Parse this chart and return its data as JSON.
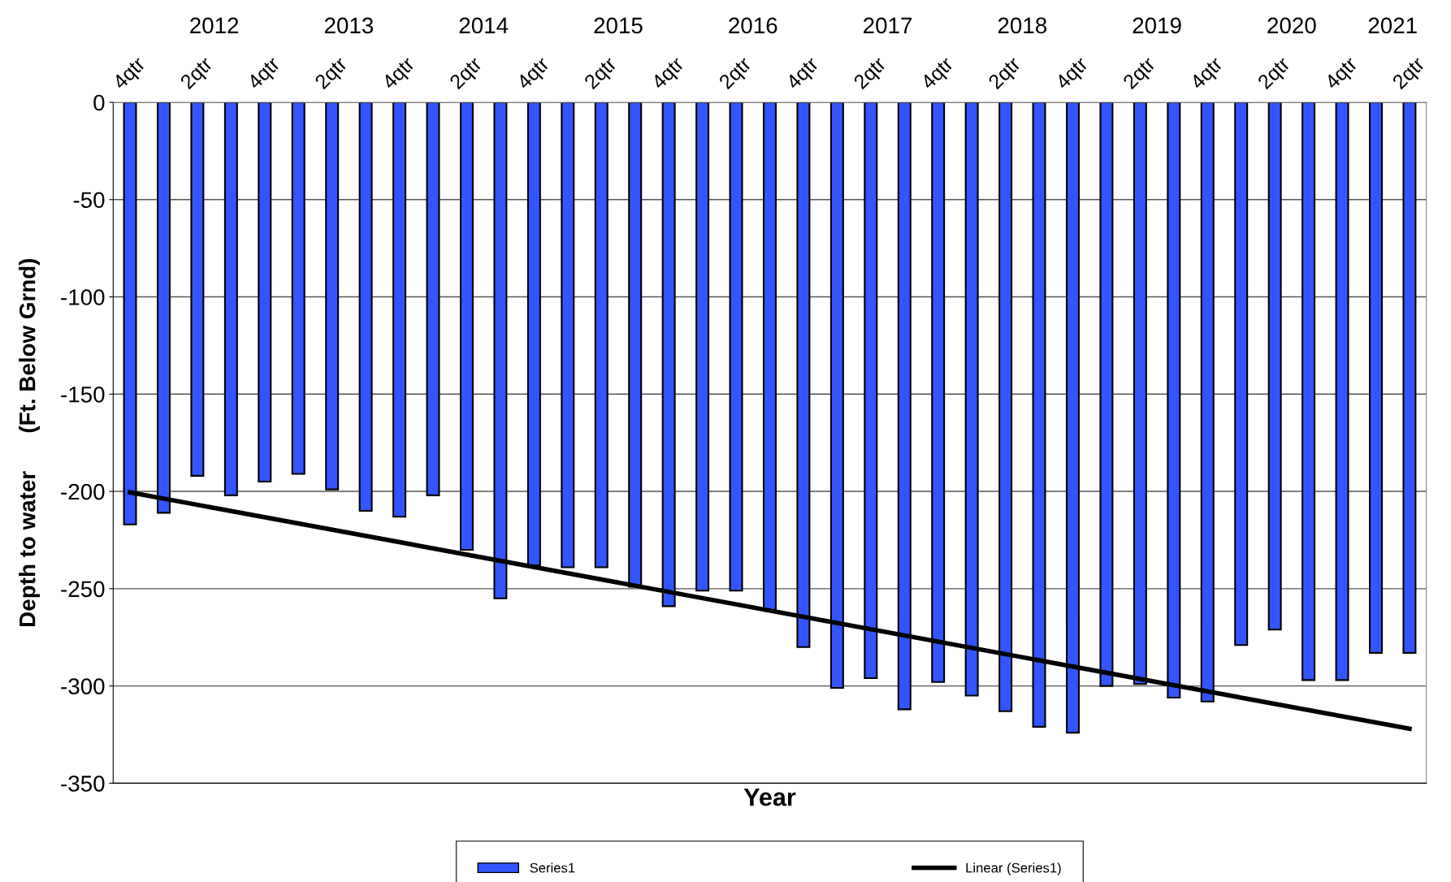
{
  "chart_data": {
    "type": "bar",
    "xlabel": "Year",
    "ylabel": "Depth to water      (Ft. Below Grnd)",
    "categories": [
      "4qtr",
      null,
      "2qtr",
      null,
      "4qtr",
      null,
      "2qtr",
      null,
      "4qtr",
      null,
      "2qtr",
      null,
      "4qtr",
      null,
      "2qtr",
      null,
      "4qtr",
      null,
      "2qtr",
      null,
      "4qtr",
      null,
      "2qtr",
      null,
      "4qtr",
      null,
      "2qtr",
      null,
      "4qtr",
      null,
      "2qtr",
      null,
      "4qtr",
      null,
      "2qtr",
      null,
      "4qtr",
      null,
      "2qtr"
    ],
    "series": [
      {
        "name": "Series1",
        "color": "#3355ff",
        "values": [
          -217,
          -211,
          -192,
          -202,
          -195,
          -191,
          -199,
          -210,
          -213,
          -202,
          -230,
          -255,
          -238,
          -239,
          -239,
          -249,
          -259,
          -251,
          -251,
          -261,
          -280,
          -301,
          -296,
          -312,
          -298,
          -305,
          -313,
          -321,
          -324,
          -300,
          -299,
          -306,
          -308,
          -279,
          -271,
          -297,
          -297,
          -283,
          -283
        ]
      },
      {
        "name": "Linear (Series1)",
        "type": "line",
        "color": "#000000",
        "values": [
          -200.5,
          null,
          null,
          null,
          null,
          null,
          null,
          null,
          null,
          null,
          null,
          null,
          null,
          null,
          null,
          null,
          null,
          null,
          null,
          null,
          null,
          null,
          null,
          null,
          null,
          null,
          null,
          null,
          null,
          null,
          null,
          null,
          null,
          null,
          null,
          null,
          null,
          null,
          -322
        ]
      }
    ],
    "ylim": [
      -350,
      0
    ],
    "yticks": [
      -350,
      -300,
      -250,
      -200,
      -150,
      -100,
      -50,
      0
    ],
    "annotations": [
      "2012",
      "2013",
      "2014",
      "2015",
      "2016",
      "2017",
      "2018",
      "2019",
      "2020",
      "2021"
    ],
    "grid": "y",
    "legend": "bottom"
  }
}
